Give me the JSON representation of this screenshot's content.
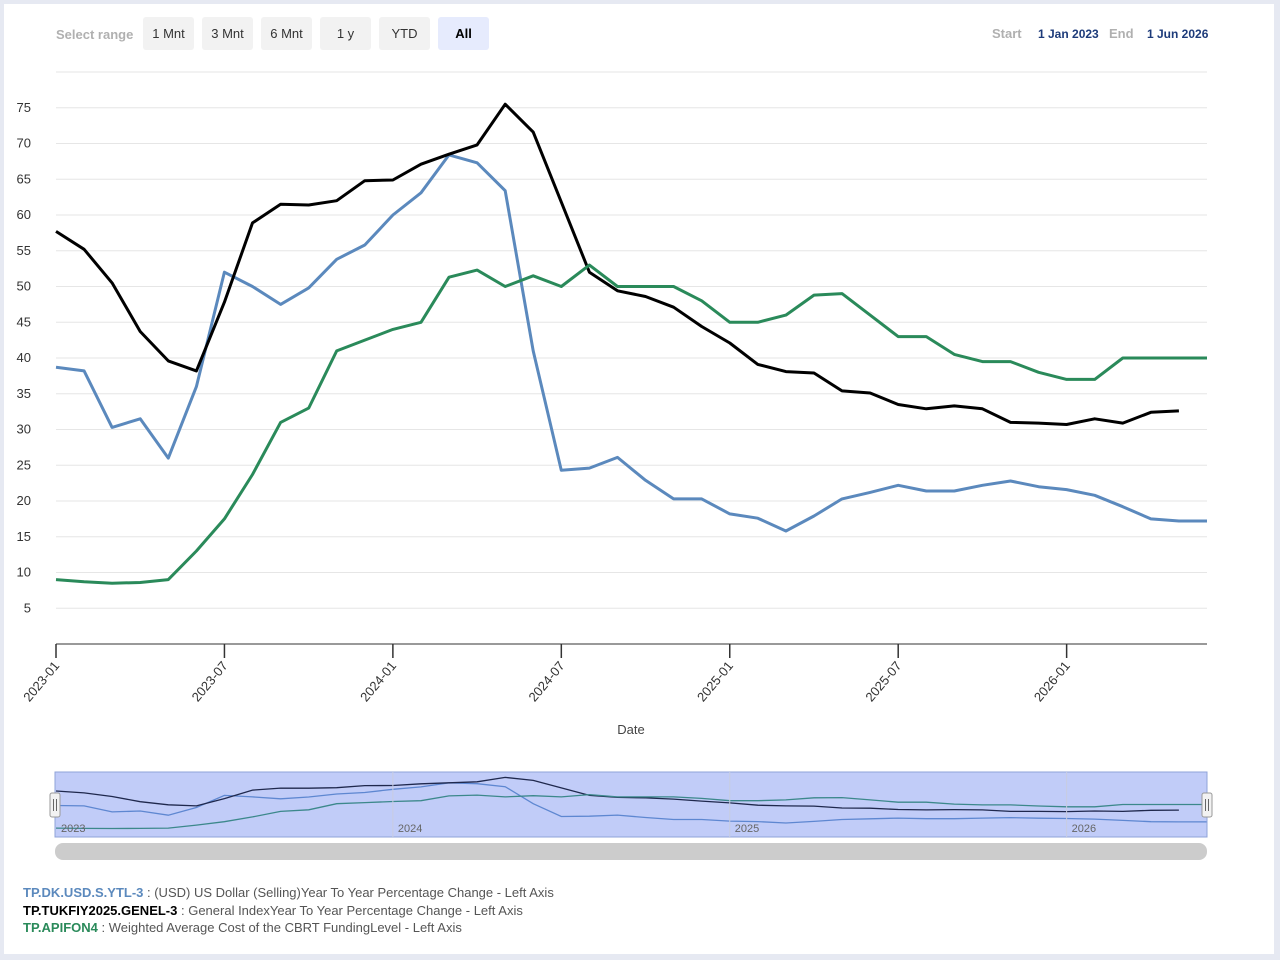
{
  "range_selector": {
    "label": "Select range",
    "buttons": [
      {
        "label": "1 Mnt",
        "active": false
      },
      {
        "label": "3 Mnt",
        "active": false
      },
      {
        "label": "6 Mnt",
        "active": false
      },
      {
        "label": "1 y",
        "active": false
      },
      {
        "label": "YTD",
        "active": false
      },
      {
        "label": "All",
        "active": true
      }
    ]
  },
  "date_range": {
    "start_label": "Start",
    "start_value": "1 Jan 2023",
    "end_label": "End",
    "end_value": "1 Jun 2026"
  },
  "navigator": {
    "year_labels": [
      "2023",
      "2024",
      "2025",
      "2026"
    ]
  },
  "legend": [
    {
      "code": "TP.DK.USD.S.YTL-3",
      "desc": " : (USD) US Dollar (Selling)Year To Year Percentage Change - Left Axis",
      "color": "#5b89bd"
    },
    {
      "code": "TP.TUKFIY2025.GENEL-3",
      "desc": " : General IndexYear To Year Percentage Change - Left Axis",
      "color": "#000000"
    },
    {
      "code": "TP.APIFON4",
      "desc": " : Weighted Average Cost of the CBRT FundingLevel - Left Axis",
      "color": "#2a8a5a"
    }
  ],
  "chart_data": {
    "type": "line",
    "xlabel": "Date",
    "ylabel": "",
    "x_ticks": [
      "2023-01",
      "2023-07",
      "2024-01",
      "2024-07",
      "2025-01",
      "2025-07",
      "2026-01"
    ],
    "y_ticks": [
      5,
      10,
      15,
      20,
      25,
      30,
      35,
      40,
      45,
      50,
      55,
      60,
      65,
      70,
      75
    ],
    "ylim": [
      0,
      80
    ],
    "x_start": "2023-01",
    "x_end": "2026-06",
    "grid": true,
    "series": [
      {
        "name": "TP.DK.USD.S.YTL-3",
        "color": "#5b89bd",
        "x": [
          "2023-01",
          "2023-02",
          "2023-03",
          "2023-04",
          "2023-05",
          "2023-06",
          "2023-07",
          "2023-08",
          "2023-09",
          "2023-10",
          "2023-11",
          "2023-12",
          "2024-01",
          "2024-02",
          "2024-03",
          "2024-04",
          "2024-05",
          "2024-06",
          "2024-07",
          "2024-08",
          "2024-09",
          "2024-10",
          "2024-11",
          "2024-12",
          "2025-01",
          "2025-02",
          "2025-03",
          "2025-04",
          "2025-05",
          "2025-06",
          "2025-07",
          "2025-08",
          "2025-09",
          "2025-10",
          "2025-11",
          "2025-12",
          "2026-01",
          "2026-02",
          "2026-03",
          "2026-04",
          "2026-05",
          "2026-06"
        ],
        "values": [
          38.7,
          38.2,
          30.3,
          31.5,
          26,
          36,
          52,
          50,
          47.5,
          49.8,
          53.8,
          55.8,
          60,
          63.1,
          68.4,
          67.3,
          63.4,
          41,
          24.3,
          24.6,
          26.1,
          22.9,
          20.3,
          20.3,
          18.2,
          17.6,
          15.8,
          17.9,
          20.3,
          21.2,
          22.2,
          21.4,
          21.4,
          22.2,
          22.8,
          22,
          21.6,
          20.8,
          19.2,
          17.5,
          17.2,
          17.2
        ]
      },
      {
        "name": "TP.TUKFIY2025.GENEL-3",
        "color": "#000000",
        "x": [
          "2023-01",
          "2023-02",
          "2023-03",
          "2023-04",
          "2023-05",
          "2023-06",
          "2023-07",
          "2023-08",
          "2023-09",
          "2023-10",
          "2023-11",
          "2023-12",
          "2024-01",
          "2024-02",
          "2024-03",
          "2024-04",
          "2024-05",
          "2024-06",
          "2024-07",
          "2024-08",
          "2024-09",
          "2024-10",
          "2024-11",
          "2024-12",
          "2025-01",
          "2025-02",
          "2025-03",
          "2025-04",
          "2025-05",
          "2025-06",
          "2025-07",
          "2025-08",
          "2025-09",
          "2025-10",
          "2025-11",
          "2025-12",
          "2026-01",
          "2026-02",
          "2026-03",
          "2026-04",
          "2026-05"
        ],
        "values": [
          57.7,
          55.2,
          50.5,
          43.7,
          39.6,
          38.2,
          47.8,
          58.9,
          61.5,
          61.4,
          62,
          64.8,
          64.9,
          67.1,
          68.5,
          69.8,
          75.5,
          71.6,
          61.8,
          52,
          49.4,
          48.6,
          47.1,
          44.4,
          42.1,
          39.1,
          38.1,
          37.9,
          35.4,
          35.1,
          33.5,
          32.9,
          33.3,
          32.9,
          31,
          30.9,
          30.7,
          31.5,
          30.9,
          32.4,
          32.6
        ]
      },
      {
        "name": "TP.APIFON4",
        "color": "#2a8a5a",
        "x": [
          "2023-01",
          "2023-02",
          "2023-03",
          "2023-04",
          "2023-05",
          "2023-06",
          "2023-07",
          "2023-08",
          "2023-09",
          "2023-10",
          "2023-11",
          "2023-12",
          "2024-01",
          "2024-02",
          "2024-03",
          "2024-04",
          "2024-05",
          "2024-06",
          "2024-07",
          "2024-08",
          "2024-09",
          "2024-10",
          "2024-11",
          "2024-12",
          "2025-01",
          "2025-02",
          "2025-03",
          "2025-04",
          "2025-05",
          "2025-06",
          "2025-07",
          "2025-08",
          "2025-09",
          "2025-10",
          "2025-11",
          "2025-12",
          "2026-01",
          "2026-02",
          "2026-03",
          "2026-04",
          "2026-05",
          "2026-06"
        ],
        "values": [
          9,
          8.7,
          8.5,
          8.6,
          9,
          13,
          17.5,
          23.7,
          31,
          33,
          41,
          42.5,
          44,
          45,
          51.3,
          52.3,
          50,
          51.5,
          50,
          53,
          50,
          50,
          50,
          48,
          45,
          45,
          46,
          48.8,
          49,
          46,
          43,
          43,
          40.5,
          39.5,
          39.5,
          38,
          37,
          37,
          40,
          40,
          40,
          40
        ]
      }
    ]
  }
}
